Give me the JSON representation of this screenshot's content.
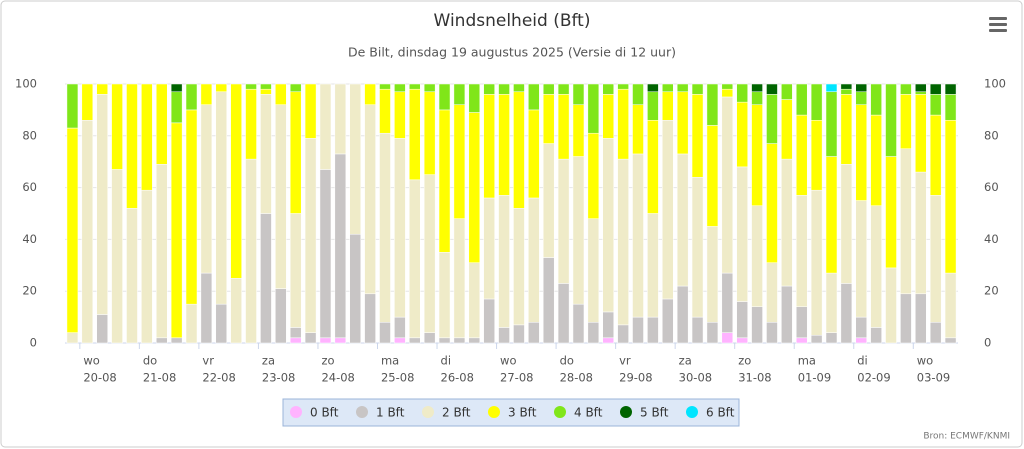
{
  "chart_data": {
    "type": "stacked_bar",
    "title": "Windsnelheid (Bft)",
    "subtitle": "De Bilt, dinsdag 19 augustus 2025 (Versie di 12 uur)",
    "source": "Bron: ECMWF/KNMI",
    "categories": [
      null,
      "20-08",
      null,
      null,
      null,
      "21-08",
      null,
      null,
      null,
      "22-08",
      null,
      null,
      null,
      "23-08",
      null,
      null,
      null,
      "24-08",
      null,
      null,
      null,
      "25-08",
      null,
      null,
      null,
      "26-08",
      null,
      null,
      null,
      "27-08",
      null,
      null,
      null,
      "28-08",
      null,
      null,
      null,
      "29-08",
      null,
      null,
      null,
      "30-08",
      null,
      null,
      null,
      "31-08",
      null,
      null,
      null,
      "01-09",
      null,
      null,
      null,
      "02-09",
      null,
      null,
      null,
      "03-09",
      null,
      null
    ],
    "weekdays": [
      null,
      "wo",
      null,
      null,
      null,
      "do",
      null,
      null,
      null,
      "vr",
      null,
      null,
      null,
      "za",
      null,
      null,
      null,
      "zo",
      null,
      null,
      null,
      "ma",
      null,
      null,
      null,
      "di",
      null,
      null,
      null,
      "wo",
      null,
      null,
      null,
      "do",
      null,
      null,
      null,
      "vr",
      null,
      null,
      null,
      "za",
      null,
      null,
      null,
      "zo",
      null,
      null,
      null,
      "ma",
      null,
      null,
      null,
      "di",
      null,
      null,
      null,
      "wo",
      null,
      null
    ],
    "ylim": [
      0,
      100
    ],
    "yticks": [
      0,
      20,
      40,
      60,
      80,
      100
    ],
    "grid": true,
    "series": [
      {
        "name": "0 Bft",
        "color": "#ffb3ff",
        "values": [
          0,
          0,
          0,
          0,
          0,
          0,
          0,
          0,
          0,
          0,
          0,
          0,
          0,
          0,
          0,
          2,
          0,
          2,
          2,
          0,
          0,
          0,
          2,
          0,
          0,
          0,
          0,
          0,
          0,
          0,
          0,
          0,
          0,
          0,
          0,
          0,
          2,
          0,
          0,
          0,
          0,
          0,
          0,
          0,
          4,
          2,
          0,
          0,
          0,
          2,
          0,
          0,
          0,
          2,
          0,
          0,
          0,
          0,
          0,
          0
        ]
      },
      {
        "name": "1 Bft",
        "color": "#c8c5c5",
        "values": [
          0,
          0,
          11,
          0,
          0,
          0,
          2,
          2,
          0,
          27,
          15,
          0,
          0,
          50,
          21,
          4,
          4,
          65,
          71,
          42,
          19,
          8,
          8,
          2,
          4,
          2,
          2,
          2,
          17,
          6,
          7,
          8,
          33,
          23,
          15,
          8,
          10,
          7,
          10,
          10,
          17,
          22,
          10,
          8,
          23,
          14,
          14,
          8,
          22,
          12,
          3,
          4,
          23,
          8,
          6,
          0,
          19,
          19,
          8,
          2
        ]
      },
      {
        "name": "2 Bft",
        "color": "#efebc8",
        "values": [
          4,
          86,
          85,
          67,
          52,
          59,
          67,
          0,
          15,
          65,
          82,
          25,
          71,
          46,
          71,
          44,
          75,
          33,
          27,
          58,
          73,
          73,
          69,
          61,
          61,
          33,
          46,
          29,
          39,
          51,
          45,
          48,
          44,
          48,
          57,
          40,
          67,
          64,
          63,
          40,
          69,
          51,
          54,
          37,
          68,
          52,
          39,
          23,
          49,
          43,
          56,
          23,
          46,
          45,
          47,
          29,
          56,
          47,
          49,
          25
        ]
      },
      {
        "name": "3 Bft",
        "color": "#ffff00",
        "values": [
          79,
          14,
          4,
          33,
          48,
          41,
          31,
          83,
          75,
          8,
          3,
          75,
          27,
          2,
          8,
          47,
          21,
          0,
          0,
          0,
          8,
          17,
          18,
          35,
          32,
          55,
          44,
          58,
          40,
          39,
          45,
          34,
          19,
          25,
          20,
          33,
          17,
          27,
          19,
          36,
          11,
          24,
          32,
          39,
          3,
          25,
          39,
          46,
          23,
          31,
          27,
          45,
          27,
          37,
          35,
          43,
          21,
          30,
          31,
          59
        ]
      },
      {
        "name": "4 Bft",
        "color": "#80e619",
        "values": [
          17,
          0,
          0,
          0,
          0,
          0,
          0,
          12,
          10,
          0,
          0,
          0,
          2,
          2,
          0,
          3,
          0,
          0,
          0,
          0,
          0,
          2,
          3,
          2,
          3,
          10,
          8,
          11,
          4,
          4,
          3,
          10,
          4,
          4,
          8,
          19,
          4,
          2,
          8,
          11,
          3,
          3,
          4,
          16,
          2,
          7,
          5,
          19,
          6,
          12,
          14,
          25,
          2,
          5,
          12,
          28,
          4,
          1,
          8,
          10
        ]
      },
      {
        "name": "5 Bft",
        "color": "#006400",
        "values": [
          0,
          0,
          0,
          0,
          0,
          0,
          0,
          3,
          0,
          0,
          0,
          0,
          0,
          0,
          0,
          0,
          0,
          0,
          0,
          0,
          0,
          0,
          0,
          0,
          0,
          0,
          0,
          0,
          0,
          0,
          0,
          0,
          0,
          0,
          0,
          0,
          0,
          0,
          0,
          3,
          0,
          0,
          0,
          0,
          0,
          0,
          3,
          4,
          0,
          0,
          0,
          0,
          2,
          3,
          0,
          0,
          0,
          3,
          4,
          4
        ]
      },
      {
        "name": "6 Bft",
        "color": "#00e5ff",
        "values": [
          0,
          0,
          0,
          0,
          0,
          0,
          0,
          0,
          0,
          0,
          0,
          0,
          0,
          0,
          0,
          0,
          0,
          0,
          0,
          0,
          0,
          0,
          0,
          0,
          0,
          0,
          0,
          0,
          0,
          0,
          0,
          0,
          0,
          0,
          0,
          0,
          0,
          0,
          0,
          0,
          0,
          0,
          0,
          0,
          0,
          0,
          0,
          0,
          0,
          0,
          0,
          3,
          0,
          0,
          0,
          0,
          0,
          0,
          0,
          0
        ]
      }
    ]
  }
}
